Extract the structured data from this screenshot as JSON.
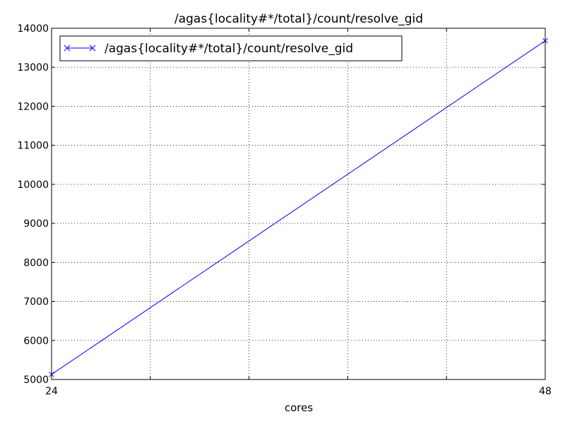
{
  "chart_data": {
    "type": "line",
    "title": "/agas{locality#*/total}/count/resolve_gid",
    "xlabel": "cores",
    "ylabel": "",
    "xlim": [
      24,
      48
    ],
    "ylim": [
      5000,
      14000
    ],
    "x_ticks": [
      "24",
      "48"
    ],
    "y_ticks": [
      "5000",
      "6000",
      "7000",
      "8000",
      "9000",
      "10000",
      "11000",
      "12000",
      "13000",
      "14000"
    ],
    "grid": true,
    "legend_position": "top-left",
    "series": [
      {
        "name": "/agas{locality#*/total}/count/resolve_gid",
        "color": "#0000ff",
        "marker": "x",
        "x": [
          24,
          48
        ],
        "y": [
          5130,
          13680
        ]
      }
    ]
  }
}
